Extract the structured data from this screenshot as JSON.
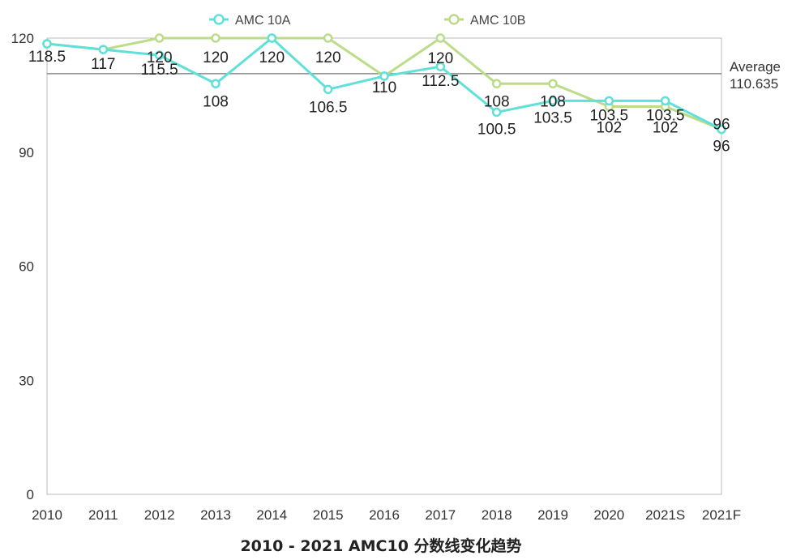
{
  "chart_data": {
    "type": "line",
    "title": "2010 - 2021 AMC10 分数线变化趋势",
    "categories": [
      "2010",
      "2011",
      "2012",
      "2013",
      "2014",
      "2015",
      "2016",
      "2017",
      "2018",
      "2019",
      "2020",
      "2021S",
      "2021F"
    ],
    "y_ticks": [
      "0",
      "30",
      "60",
      "90",
      "120"
    ],
    "ylim": [
      0,
      120
    ],
    "grid": false,
    "legend_position": "top",
    "series": [
      {
        "name": "AMC 10A",
        "color": "#5fe0d8",
        "values": [
          118.5,
          117,
          115.5,
          108,
          120,
          106.5,
          110,
          112.5,
          100.5,
          103.5,
          103.5,
          103.5,
          96
        ],
        "labels": [
          "118.5",
          "117",
          "115.5",
          "108",
          "120",
          "106.5",
          "110",
          "112.5",
          "100.5",
          "103.5",
          "103.5",
          "103.5",
          "96"
        ]
      },
      {
        "name": "AMC 10B",
        "color": "#bcdc8a",
        "values": [
          118.5,
          117,
          120,
          120,
          120,
          120,
          110,
          120,
          108,
          108,
          102,
          102,
          96
        ],
        "labels": [
          "",
          "",
          "120",
          "120",
          "",
          "120",
          "",
          "120",
          "108",
          "108",
          "102",
          "102",
          "96"
        ]
      }
    ],
    "reference_line": {
      "label": "Average",
      "value": 110.635,
      "value_label": "110.635",
      "color": "#888888"
    }
  }
}
